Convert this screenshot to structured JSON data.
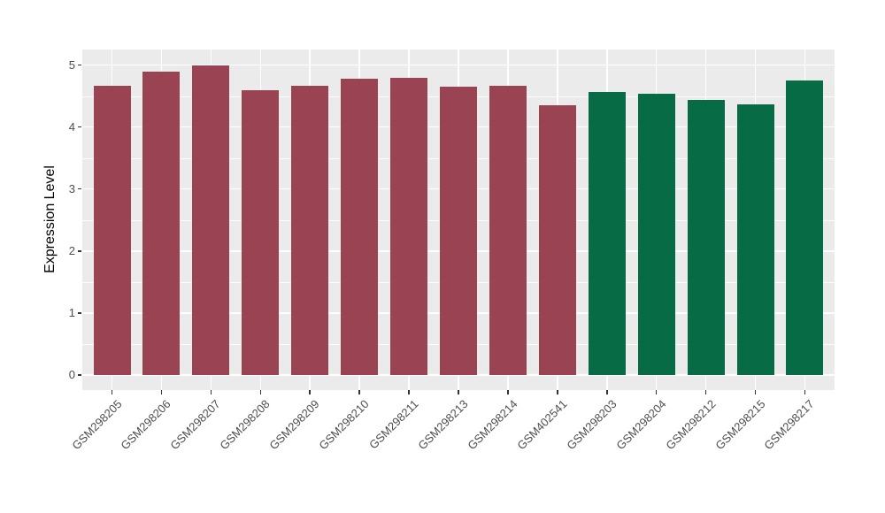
{
  "chart_data": {
    "type": "bar",
    "title": "",
    "xlabel": "",
    "ylabel": "Expression Level",
    "ylim": [
      0,
      5
    ],
    "yticks": [
      0,
      1,
      2,
      3,
      4,
      5
    ],
    "ytick_labels": [
      "0",
      "1",
      "2",
      "3",
      "4",
      "5"
    ],
    "grid": "on",
    "legend_position": "none",
    "panel_background": "#EBEBEB",
    "grid_color": "#FFFFFF",
    "categories": [
      "GSM298205",
      "GSM298206",
      "GSM298207",
      "GSM298208",
      "GSM298209",
      "GSM298210",
      "GSM298211",
      "GSM298213",
      "GSM298214",
      "GSM402541",
      "GSM298203",
      "GSM298204",
      "GSM298212",
      "GSM298215",
      "GSM298217"
    ],
    "values": [
      4.67,
      4.9,
      5.0,
      4.6,
      4.66,
      4.78,
      4.79,
      4.65,
      4.67,
      4.35,
      4.57,
      4.53,
      4.43,
      4.37,
      4.75
    ],
    "groups": [
      "A",
      "A",
      "A",
      "A",
      "A",
      "A",
      "A",
      "A",
      "A",
      "A",
      "B",
      "B",
      "B",
      "B",
      "B"
    ],
    "group_colors": {
      "A": "#9A4352",
      "B": "#076B46"
    }
  }
}
